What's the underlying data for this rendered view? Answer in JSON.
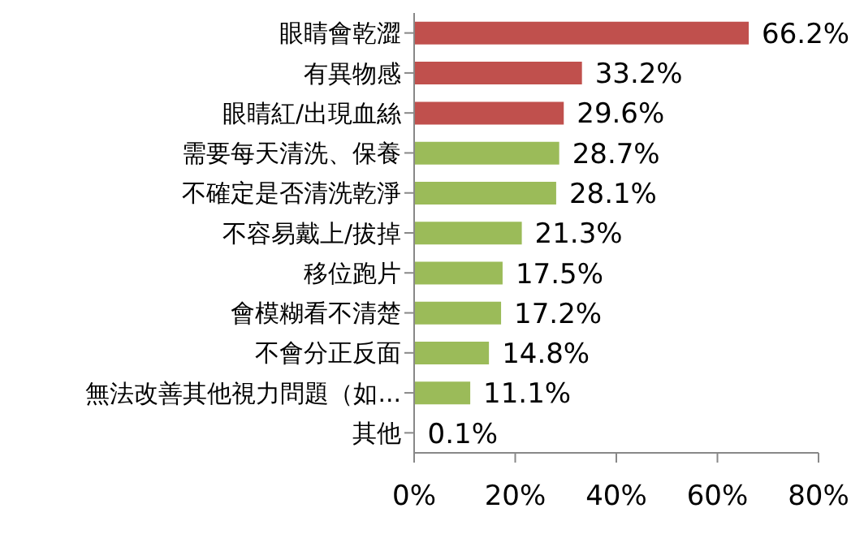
{
  "chart_data": {
    "type": "bar",
    "orientation": "horizontal",
    "categories": [
      "眼睛會乾澀",
      "有異物感",
      "眼睛紅/出現血絲",
      "需要每天清洗、保養",
      "不確定是否清洗乾淨",
      "不容易戴上/拔掉",
      "移位跑片",
      "會模糊看不清楚",
      "不會分正反面",
      "無法改善其他視力問題（如...",
      "其他"
    ],
    "values": [
      66.2,
      33.2,
      29.6,
      28.7,
      28.1,
      21.3,
      17.5,
      17.2,
      14.8,
      11.1,
      0.1
    ],
    "colors": [
      "#c0504d",
      "#c0504d",
      "#c0504d",
      "#9bbb59",
      "#9bbb59",
      "#9bbb59",
      "#9bbb59",
      "#9bbb59",
      "#9bbb59",
      "#9bbb59",
      "#9bbb59"
    ],
    "value_labels": [
      "66.2%",
      "33.2%",
      "29.6%",
      "28.7%",
      "28.1%",
      "21.3%",
      "17.5%",
      "17.2%",
      "14.8%",
      "11.1%",
      "0.1%"
    ],
    "xlim": [
      0,
      80
    ],
    "xticks": [
      {
        "value": 0,
        "label": "0%"
      },
      {
        "value": 20,
        "label": "20%"
      },
      {
        "value": 40,
        "label": "40%"
      },
      {
        "value": 60,
        "label": "60%"
      },
      {
        "value": 80,
        "label": "80%"
      }
    ],
    "grid": false
  }
}
